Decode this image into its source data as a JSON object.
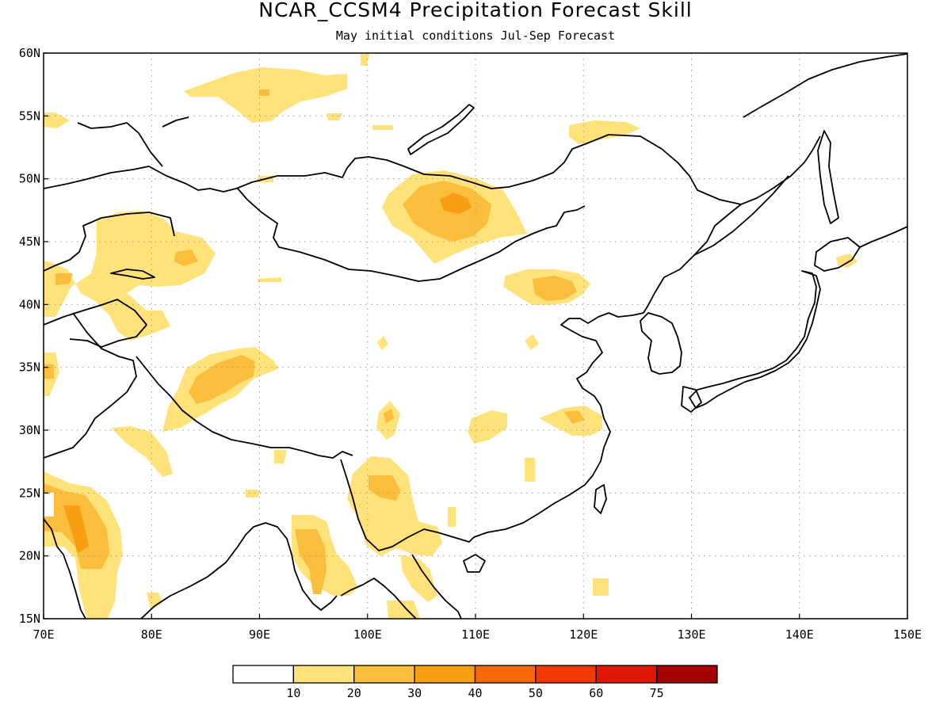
{
  "title": "NCAR_CCSM4 Precipitation Forecast Skill",
  "subtitle": "May initial conditions  Jul-Sep Forecast",
  "map": {
    "lon_range": [
      70,
      150
    ],
    "lat_range": [
      15,
      60
    ],
    "lon_ticks": [
      "70E",
      "80E",
      "90E",
      "100E",
      "110E",
      "120E",
      "130E",
      "140E",
      "150E"
    ],
    "lat_ticks": [
      "60N",
      "55N",
      "50N",
      "45N",
      "40N",
      "35N",
      "30N",
      "25N",
      "20N",
      "15N"
    ],
    "grid": "dotted"
  },
  "colorbar": {
    "colors": [
      "#ffffff",
      "#ffe27a",
      "#fbbd3c",
      "#f89e12",
      "#f7680a",
      "#f33a05",
      "#df1805",
      "#a50000"
    ],
    "labels": [
      "10",
      "20",
      "30",
      "40",
      "50",
      "60",
      "75"
    ]
  }
}
